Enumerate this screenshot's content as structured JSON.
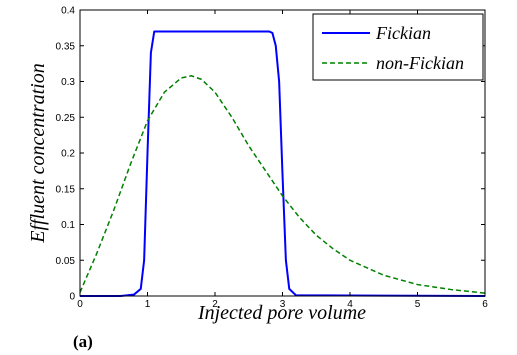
{
  "chart_data": {
    "type": "line",
    "title": "",
    "xlabel": "Injected pore volume",
    "ylabel": "Effluent concentration",
    "xlim": [
      0,
      6
    ],
    "ylim": [
      0,
      0.4
    ],
    "xticks": [
      0,
      1,
      2,
      3,
      4,
      5,
      6
    ],
    "yticks": [
      0,
      0.05,
      0.1,
      0.15,
      0.2,
      0.25,
      0.3,
      0.35,
      0.4
    ],
    "ytick_labels": [
      "0",
      "0.05",
      "0.1",
      "0.15",
      "0.2",
      "0.25",
      "0.3",
      "0.35",
      "0.4"
    ],
    "grid": false,
    "legend_position": "top-right",
    "panel_label": "(a)",
    "series": [
      {
        "name": "Fickian",
        "color": "#0000ff",
        "style": "solid",
        "x": [
          0,
          0.6,
          0.8,
          0.9,
          0.95,
          1.0,
          1.05,
          1.1,
          2.0,
          2.8,
          2.85,
          2.9,
          2.95,
          3.0,
          3.05,
          3.1,
          3.2,
          6.0
        ],
        "y": [
          0,
          0,
          0.002,
          0.01,
          0.05,
          0.2,
          0.34,
          0.37,
          0.37,
          0.37,
          0.368,
          0.35,
          0.3,
          0.17,
          0.05,
          0.01,
          0.001,
          0
        ]
      },
      {
        "name": "non-Fickian",
        "color": "#008000",
        "style": "dashed",
        "x": [
          0,
          0.25,
          0.5,
          0.75,
          1.0,
          1.25,
          1.5,
          1.65,
          1.8,
          2.0,
          2.25,
          2.5,
          2.75,
          3.0,
          3.25,
          3.5,
          3.75,
          4.0,
          4.5,
          5.0,
          5.5,
          6.0
        ],
        "y": [
          0.005,
          0.06,
          0.12,
          0.185,
          0.245,
          0.285,
          0.305,
          0.308,
          0.303,
          0.285,
          0.25,
          0.21,
          0.175,
          0.14,
          0.11,
          0.085,
          0.066,
          0.05,
          0.029,
          0.016,
          0.009,
          0.004
        ]
      }
    ]
  }
}
